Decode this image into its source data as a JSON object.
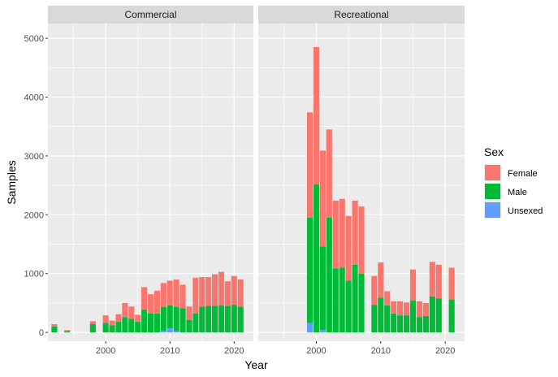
{
  "chart_data": {
    "type": "bar",
    "stacked": true,
    "facets": [
      "Commercial",
      "Recreational"
    ],
    "xlabel": "Year",
    "ylabel": "Samples",
    "xlim": [
      1991,
      2023
    ],
    "ylim": [
      -150,
      5250
    ],
    "x_ticks": [
      2000,
      2010,
      2020
    ],
    "y_ticks": [
      0,
      1000,
      2000,
      3000,
      4000,
      5000
    ],
    "grid": true,
    "legend": {
      "title": "Sex",
      "position": "right",
      "entries": [
        "Female",
        "Male",
        "Unsexed"
      ]
    },
    "colors": {
      "Female": "#F8766D",
      "Male": "#00BA38",
      "Unsexed": "#619CFF",
      "panel": "#EBEBEB",
      "strip": "#D9D9D9",
      "grid": "#FFFFFF"
    },
    "panels": [
      {
        "name": "Commercial",
        "data": [
          {
            "x": 1992,
            "female": 40,
            "male": 100,
            "unsexed": 0
          },
          {
            "x": 1994,
            "female": 20,
            "male": 20,
            "unsexed": 0
          },
          {
            "x": 1998,
            "female": 50,
            "male": 140,
            "unsexed": 0
          },
          {
            "x": 2000,
            "female": 130,
            "male": 160,
            "unsexed": 0
          },
          {
            "x": 2001,
            "female": 80,
            "male": 120,
            "unsexed": 0
          },
          {
            "x": 2002,
            "female": 130,
            "male": 180,
            "unsexed": 0
          },
          {
            "x": 2003,
            "female": 240,
            "male": 260,
            "unsexed": 0
          },
          {
            "x": 2004,
            "female": 210,
            "male": 230,
            "unsexed": 0
          },
          {
            "x": 2005,
            "female": 120,
            "male": 180,
            "unsexed": 0
          },
          {
            "x": 2006,
            "female": 380,
            "male": 390,
            "unsexed": 0
          },
          {
            "x": 2007,
            "female": 330,
            "male": 320,
            "unsexed": 0
          },
          {
            "x": 2008,
            "female": 390,
            "male": 320,
            "unsexed": 0
          },
          {
            "x": 2009,
            "female": 410,
            "male": 400,
            "unsexed": 30
          },
          {
            "x": 2010,
            "female": 420,
            "male": 390,
            "unsexed": 70
          },
          {
            "x": 2011,
            "female": 470,
            "male": 410,
            "unsexed": 20
          },
          {
            "x": 2012,
            "female": 400,
            "male": 410,
            "unsexed": 0
          },
          {
            "x": 2013,
            "female": 230,
            "male": 210,
            "unsexed": 0
          },
          {
            "x": 2014,
            "female": 610,
            "male": 320,
            "unsexed": 0
          },
          {
            "x": 2015,
            "female": 500,
            "male": 440,
            "unsexed": 0
          },
          {
            "x": 2016,
            "female": 490,
            "male": 450,
            "unsexed": 0
          },
          {
            "x": 2017,
            "female": 540,
            "male": 450,
            "unsexed": 0
          },
          {
            "x": 2018,
            "female": 570,
            "male": 460,
            "unsexed": 0
          },
          {
            "x": 2019,
            "female": 420,
            "male": 450,
            "unsexed": 0
          },
          {
            "x": 2020,
            "female": 490,
            "male": 470,
            "unsexed": 0
          },
          {
            "x": 2021,
            "female": 460,
            "male": 440,
            "unsexed": 0
          }
        ]
      },
      {
        "name": "Recreational",
        "data": [
          {
            "x": 1999,
            "female": 1790,
            "male": 1790,
            "unsexed": 160
          },
          {
            "x": 2000,
            "female": 2330,
            "male": 2520,
            "unsexed": 0
          },
          {
            "x": 2001,
            "female": 1630,
            "male": 1420,
            "unsexed": 40
          },
          {
            "x": 2002,
            "female": 1500,
            "male": 1950,
            "unsexed": 0
          },
          {
            "x": 2003,
            "female": 1150,
            "male": 1090,
            "unsexed": 0
          },
          {
            "x": 2004,
            "female": 1170,
            "male": 1100,
            "unsexed": 0
          },
          {
            "x": 2005,
            "female": 1100,
            "male": 880,
            "unsexed": 0
          },
          {
            "x": 2006,
            "female": 1090,
            "male": 1150,
            "unsexed": 0
          },
          {
            "x": 2007,
            "female": 1140,
            "male": 1000,
            "unsexed": 0
          },
          {
            "x": 2009,
            "female": 490,
            "male": 470,
            "unsexed": 0
          },
          {
            "x": 2010,
            "female": 600,
            "male": 590,
            "unsexed": 0
          },
          {
            "x": 2011,
            "female": 240,
            "male": 460,
            "unsexed": 0
          },
          {
            "x": 2012,
            "female": 210,
            "male": 320,
            "unsexed": 0
          },
          {
            "x": 2013,
            "female": 240,
            "male": 290,
            "unsexed": 0
          },
          {
            "x": 2014,
            "female": 220,
            "male": 290,
            "unsexed": 0
          },
          {
            "x": 2015,
            "female": 530,
            "male": 540,
            "unsexed": 0
          },
          {
            "x": 2016,
            "female": 270,
            "male": 260,
            "unsexed": 0
          },
          {
            "x": 2017,
            "female": 220,
            "male": 280,
            "unsexed": 0
          },
          {
            "x": 2018,
            "female": 590,
            "male": 610,
            "unsexed": 0
          },
          {
            "x": 2019,
            "female": 570,
            "male": 580,
            "unsexed": 0
          },
          {
            "x": 2021,
            "female": 540,
            "male": 560,
            "unsexed": 0
          }
        ]
      }
    ]
  }
}
